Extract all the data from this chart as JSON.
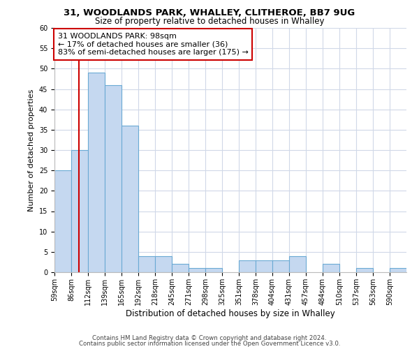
{
  "title1": "31, WOODLANDS PARK, WHALLEY, CLITHEROE, BB7 9UG",
  "title2": "Size of property relative to detached houses in Whalley",
  "xlabel": "Distribution of detached houses by size in Whalley",
  "ylabel": "Number of detached properties",
  "bin_labels": [
    "59sqm",
    "86sqm",
    "112sqm",
    "139sqm",
    "165sqm",
    "192sqm",
    "218sqm",
    "245sqm",
    "271sqm",
    "298sqm",
    "325sqm",
    "351sqm",
    "378sqm",
    "404sqm",
    "431sqm",
    "457sqm",
    "484sqm",
    "510sqm",
    "537sqm",
    "563sqm",
    "590sqm"
  ],
  "bar_values": [
    25,
    30,
    49,
    46,
    36,
    4,
    4,
    2,
    1,
    1,
    0,
    3,
    3,
    3,
    4,
    0,
    2,
    0,
    1,
    0,
    1
  ],
  "bar_color": "#c5d8f0",
  "bar_edge_color": "#6aaad4",
  "vline_x_index": 1,
  "vline_color": "#cc0000",
  "annotation_title": "31 WOODLANDS PARK: 98sqm",
  "annotation_line1": "← 17% of detached houses are smaller (36)",
  "annotation_line2": "83% of semi-detached houses are larger (175) →",
  "annotation_box_edge": "#cc0000",
  "ylim": [
    0,
    60
  ],
  "yticks": [
    0,
    5,
    10,
    15,
    20,
    25,
    30,
    35,
    40,
    45,
    50,
    55,
    60
  ],
  "footer1": "Contains HM Land Registry data © Crown copyright and database right 2024.",
  "footer2": "Contains public sector information licensed under the Open Government Licence v3.0.",
  "bg_color": "#ffffff",
  "grid_color": "#d0d8e8",
  "vline_position": 98
}
